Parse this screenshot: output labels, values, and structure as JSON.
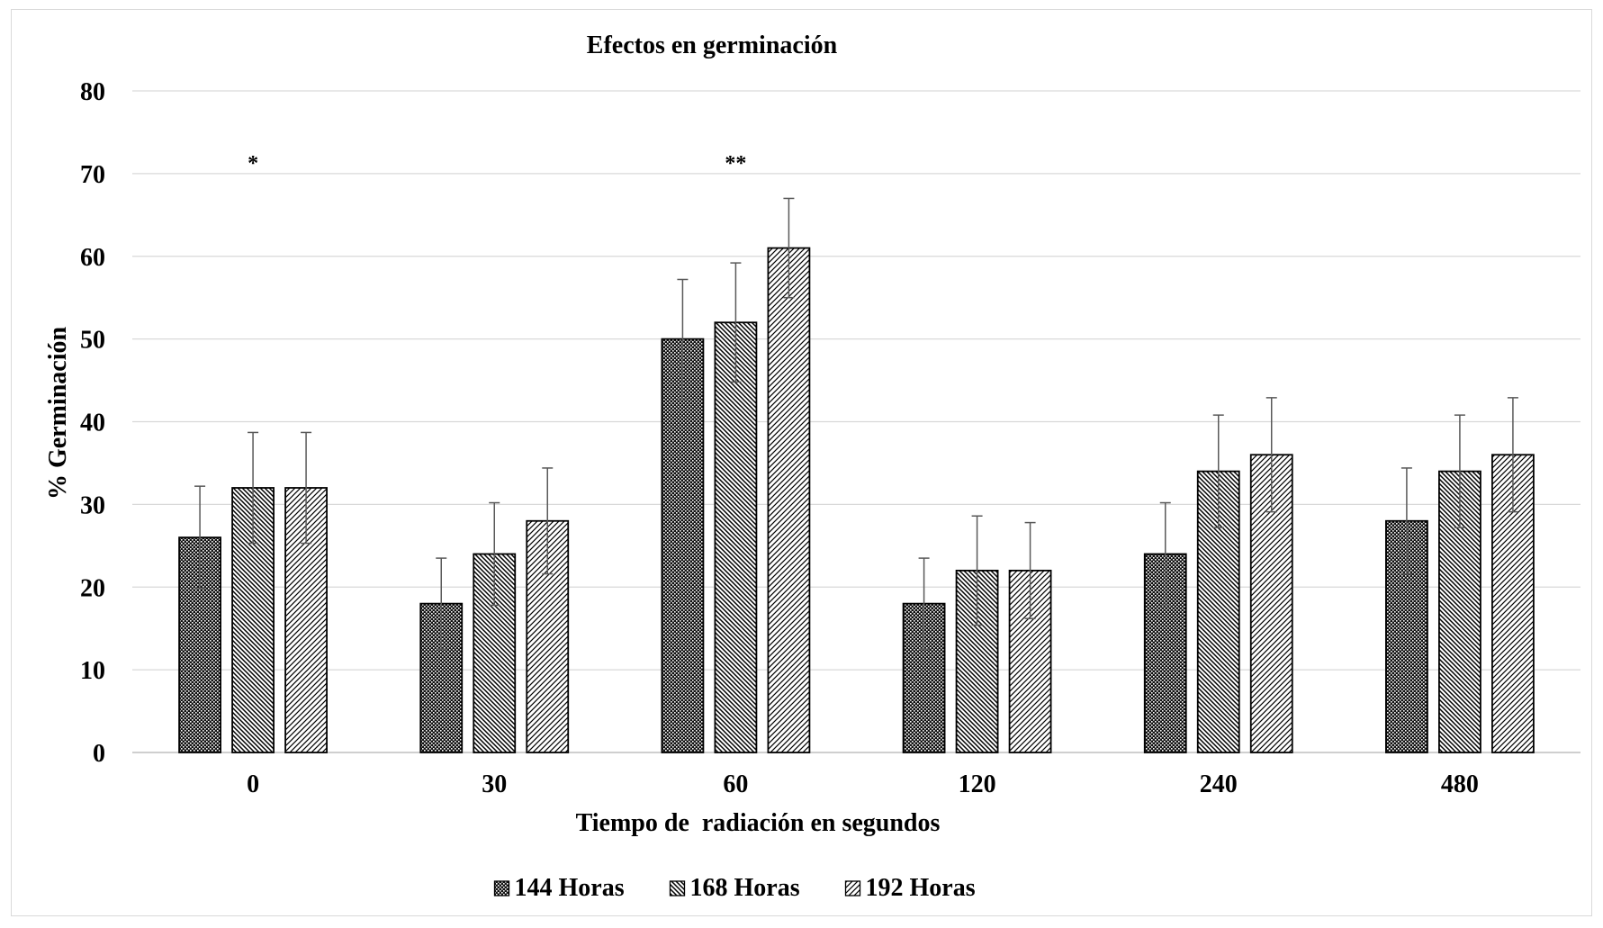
{
  "chart_data": {
    "type": "bar",
    "title": "Efectos en germinación",
    "xlabel": "Tiempo de  radiación en segundos",
    "ylabel": "% Germinación",
    "categories": [
      "0",
      "30",
      "60",
      "120",
      "240",
      "480"
    ],
    "ylim": [
      0,
      80
    ],
    "yticks": [
      "0",
      "10",
      "20",
      "30",
      "40",
      "50",
      "60",
      "70",
      "80"
    ],
    "grid": true,
    "legend_position": "bottom",
    "series": [
      {
        "name": "144 Horas",
        "pattern": "dots",
        "values": [
          26,
          18,
          50,
          18,
          24,
          28
        ],
        "errors": [
          6.2,
          5.5,
          7.2,
          5.5,
          6.2,
          6.4
        ]
      },
      {
        "name": "168 Horas",
        "pattern": "diagonal-back",
        "values": [
          32,
          24,
          52,
          22,
          34,
          34
        ],
        "errors": [
          6.7,
          6.2,
          7.2,
          6.6,
          6.8,
          6.8
        ]
      },
      {
        "name": "192 Horas",
        "pattern": "diagonal-forward",
        "values": [
          32,
          28,
          61,
          22,
          36,
          36
        ],
        "errors": [
          6.7,
          6.4,
          6.0,
          5.8,
          6.9,
          6.9
        ]
      }
    ],
    "annotations": [
      {
        "category": "0",
        "text": "*",
        "y": 71.5
      },
      {
        "category": "60",
        "text": "**",
        "y": 71.5
      }
    ]
  },
  "colors": {
    "bar_outline": "#000000",
    "grid": "#d9d9d9",
    "axis": "#bfbfbf",
    "error_bar": "#595959"
  }
}
